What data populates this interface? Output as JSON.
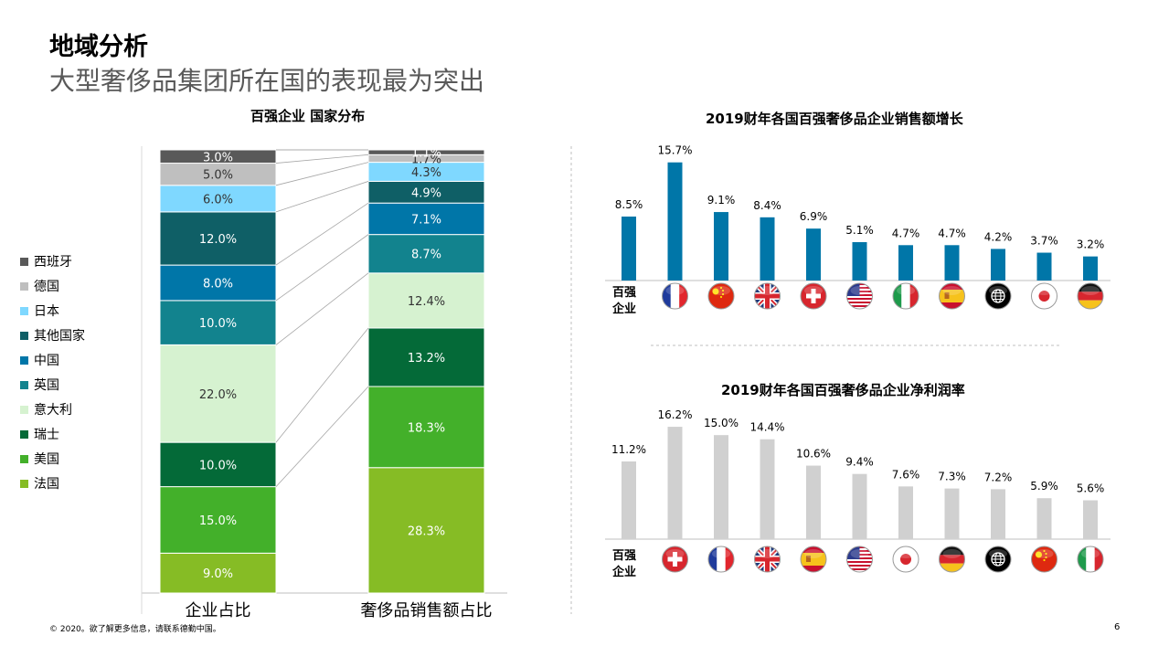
{
  "header": {
    "title": "地域分析",
    "subtitle": "大型奢侈品集团所在国的表现最为突出"
  },
  "stacked": {
    "title": "百强企业 国家分布",
    "columns": [
      "企业占比",
      "奢侈品销售额占比"
    ],
    "legend": [
      {
        "name": "西班牙",
        "color": "#595959"
      },
      {
        "name": "德国",
        "color": "#bfbfbf"
      },
      {
        "name": "日本",
        "color": "#7fd8ff"
      },
      {
        "name": "其他国家",
        "color": "#0f5f66"
      },
      {
        "name": "中国",
        "color": "#0076a8"
      },
      {
        "name": "英国",
        "color": "#12838e"
      },
      {
        "name": "意大利",
        "color": "#d6f2d0"
      },
      {
        "name": "瑞士",
        "color": "#046a38"
      },
      {
        "name": "美国",
        "color": "#43b02a"
      },
      {
        "name": "法国",
        "color": "#86bc25"
      }
    ],
    "bar_labels": {
      "col0": [
        "3.0%",
        "5.0%",
        "6.0%",
        "12.0%",
        "8.0%",
        "10.0%",
        "22.0%",
        "10.0%",
        "15.0%",
        "9.0%"
      ],
      "col1": [
        "1.1%",
        "1.7%",
        "4.3%",
        "4.9%",
        "7.1%",
        "8.7%",
        "12.4%",
        "13.2%",
        "18.3%",
        "28.3%"
      ]
    }
  },
  "growth": {
    "title": "2019财年各国百强奢侈品企业销售额增长",
    "row_label_1": "百强",
    "row_label_2": "企业",
    "bar_color": "#0076a8",
    "flags": [
      "france-flag-icon",
      "china-flag-icon",
      "uk-flag-icon",
      "switzerland-flag-icon",
      "usa-flag-icon",
      "italy-flag-icon",
      "spain-flag-icon",
      "globe-icon",
      "japan-flag-icon",
      "germany-flag-icon"
    ],
    "labels": [
      "8.5%",
      "15.7%",
      "9.1%",
      "8.4%",
      "6.9%",
      "5.1%",
      "4.7%",
      "4.7%",
      "4.2%",
      "3.7%",
      "3.2%"
    ]
  },
  "margin": {
    "title": "2019财年各国百强奢侈品企业净利润率",
    "row_label_1": "百强",
    "row_label_2": "企业",
    "bar_color": "#d0d0d0",
    "flags": [
      "switzerland-flag-icon",
      "france-flag-icon",
      "uk-flag-icon",
      "spain-flag-icon",
      "usa-flag-icon",
      "japan-flag-icon",
      "germany-flag-icon",
      "globe-icon",
      "china-flag-icon",
      "italy-flag-icon"
    ],
    "labels": [
      "11.2%",
      "16.2%",
      "15.0%",
      "14.4%",
      "10.6%",
      "9.4%",
      "7.6%",
      "7.3%",
      "7.2%",
      "5.9%",
      "5.6%"
    ]
  },
  "footer": {
    "copyright": "© 2020。欲了解更多信息，请联系德勤中国。",
    "page": "6"
  },
  "chart_data": [
    {
      "type": "bar",
      "title": "百强企业 国家分布",
      "stacked": true,
      "categories": [
        "企业占比",
        "奢侈品销售额占比"
      ],
      "series": [
        {
          "name": "法国",
          "values": [
            9.0,
            28.3
          ]
        },
        {
          "name": "美国",
          "values": [
            15.0,
            18.3
          ]
        },
        {
          "name": "瑞士",
          "values": [
            10.0,
            13.2
          ]
        },
        {
          "name": "意大利",
          "values": [
            22.0,
            12.4
          ]
        },
        {
          "name": "英国",
          "values": [
            10.0,
            8.7
          ]
        },
        {
          "name": "中国",
          "values": [
            8.0,
            7.1
          ]
        },
        {
          "name": "其他国家",
          "values": [
            12.0,
            4.9
          ]
        },
        {
          "name": "日本",
          "values": [
            6.0,
            4.3
          ]
        },
        {
          "name": "德国",
          "values": [
            5.0,
            1.7
          ]
        },
        {
          "name": "西班牙",
          "values": [
            3.0,
            1.1
          ]
        }
      ],
      "legend": "left"
    },
    {
      "type": "bar",
      "title": "2019财年各国百强奢侈品企业销售额增长",
      "categories": [
        "百强企业",
        "France",
        "China",
        "UK",
        "Switzerland",
        "USA",
        "Italy",
        "Spain",
        "Other",
        "Japan",
        "Germany"
      ],
      "values": [
        8.5,
        15.7,
        9.1,
        8.4,
        6.9,
        5.1,
        4.7,
        4.7,
        4.2,
        3.7,
        3.2
      ],
      "ylim": [
        0,
        17
      ]
    },
    {
      "type": "bar",
      "title": "2019财年各国百强奢侈品企业净利润率",
      "categories": [
        "百强企业",
        "Switzerland",
        "France",
        "UK",
        "Spain",
        "USA",
        "Japan",
        "Germany",
        "Other",
        "China",
        "Italy"
      ],
      "values": [
        11.2,
        16.2,
        15.0,
        14.4,
        10.6,
        9.4,
        7.6,
        7.3,
        7.2,
        5.9,
        5.6
      ],
      "ylim": [
        0,
        17
      ]
    }
  ]
}
